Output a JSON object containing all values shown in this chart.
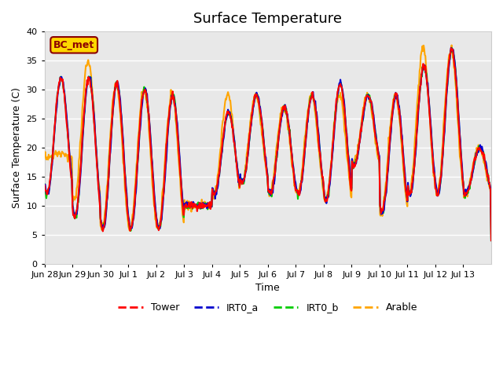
{
  "title": "Surface Temperature",
  "xlabel": "Time",
  "ylabel": "Surface Temperature (C)",
  "ylim": [
    0,
    40
  ],
  "yticks": [
    0,
    5,
    10,
    15,
    20,
    25,
    30,
    35,
    40
  ],
  "annotation": "BC_met",
  "annotation_color": "#8B0000",
  "annotation_bg": "#FFD700",
  "series_colors": {
    "Tower": "#FF0000",
    "IRT0_a": "#0000CD",
    "IRT0_b": "#00CC00",
    "Arable": "#FFA500"
  },
  "legend_labels": [
    "Tower",
    "IRT0_a",
    "IRT0_b",
    "Arable"
  ],
  "xtick_labels": [
    "Jun 28",
    "Jun 29",
    "Jun 30",
    "Jul 1",
    "Jul 2",
    "Jul 3",
    "Jul 4",
    "Jul 5",
    "Jul 6",
    "Jul 7",
    "Jul 8",
    "Jul 9",
    "Jul 10",
    "Jul 11",
    "Jul 12",
    "Jul 13"
  ],
  "background_color": "#E8E8E8",
  "grid_color": "#FFFFFF",
  "linewidth": 1.5,
  "n_days": 16,
  "pts_per_day": 48,
  "daily_peaks_tower": [
    32,
    32,
    31,
    30,
    29,
    10,
    26,
    29,
    27,
    29,
    31,
    29,
    29,
    34,
    37,
    20
  ],
  "daily_mins_tower": [
    12,
    8,
    6,
    6,
    6,
    10,
    12,
    14,
    12,
    12,
    11,
    17,
    9,
    12,
    12,
    12
  ],
  "daily_peaks_arable": [
    19,
    35,
    31,
    30,
    29,
    10,
    29,
    29,
    27,
    29,
    29,
    29,
    29,
    37,
    37,
    20
  ],
  "daily_mins_arable": [
    18,
    11,
    6,
    6,
    6,
    10,
    12,
    14,
    12,
    12,
    11,
    17,
    9,
    12,
    12,
    12
  ]
}
